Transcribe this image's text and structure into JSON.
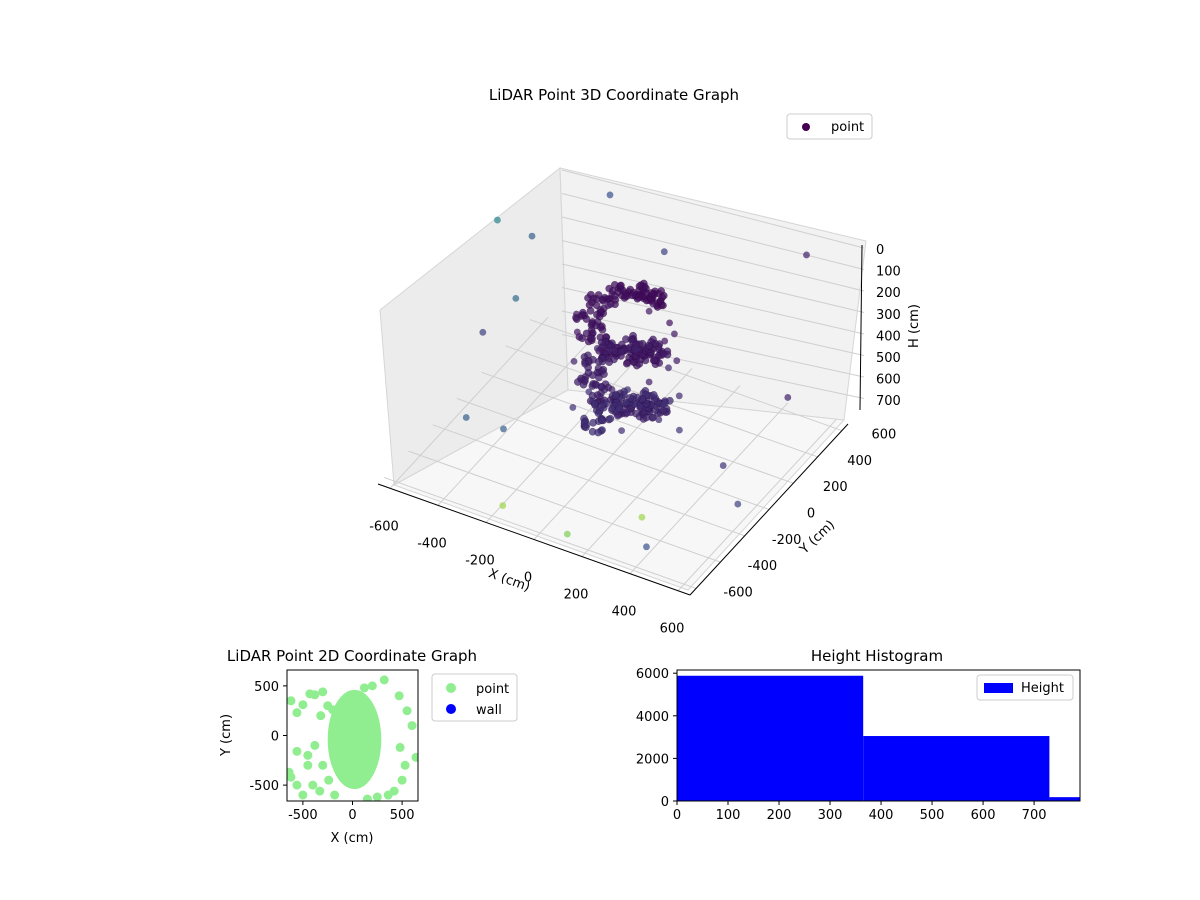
{
  "chart_data": [
    {
      "type": "scatter",
      "projection": "3d",
      "title": "LiDAR Point 3D Coordinate Graph",
      "xlabel": "X (cm)",
      "ylabel": "Y (cm)",
      "zlabel": "H (cm)",
      "xlim": [
        -650,
        650
      ],
      "ylim": [
        -650,
        650
      ],
      "zlim": [
        760,
        0
      ],
      "xticks": [
        "-600",
        "-400",
        "-200",
        "0",
        "200",
        "400",
        "600"
      ],
      "yticks": [
        "-600",
        "-400",
        "-200",
        "0",
        "200",
        "400",
        "600"
      ],
      "zticks": [
        "0",
        "100",
        "200",
        "300",
        "400",
        "500",
        "600",
        "700"
      ],
      "z_inverted": true,
      "colormap": "viridis",
      "grid": true,
      "legend": {
        "position": "top-right",
        "entries": [
          {
            "label": "point",
            "color": "#440154"
          }
        ]
      },
      "series": [
        {
          "name": "point",
          "description_points": "dense ring of points near the center; estimated sample",
          "points": [
            [
              -30,
              40,
              150,
              0.05
            ],
            [
              120,
              80,
              160,
              0.05
            ],
            [
              220,
              20,
              170,
              0.05
            ],
            [
              250,
              -80,
              180,
              0.05
            ],
            [
              180,
              -180,
              190,
              0.05
            ],
            [
              60,
              -220,
              210,
              0.06
            ],
            [
              -80,
              -150,
              220,
              0.06
            ],
            [
              -150,
              -20,
              240,
              0.06
            ],
            [
              -90,
              120,
              260,
              0.07
            ],
            [
              40,
              200,
              280,
              0.07
            ],
            [
              170,
              150,
              300,
              0.07
            ],
            [
              240,
              30,
              320,
              0.08
            ],
            [
              200,
              -120,
              340,
              0.08
            ],
            [
              90,
              -210,
              360,
              0.09
            ],
            [
              -50,
              -190,
              380,
              0.09
            ],
            [
              -140,
              -70,
              400,
              0.1
            ],
            [
              -120,
              80,
              420,
              0.1
            ],
            [
              -10,
              180,
              440,
              0.11
            ],
            [
              130,
              170,
              460,
              0.11
            ],
            [
              230,
              60,
              480,
              0.12
            ],
            [
              220,
              -90,
              500,
              0.12
            ],
            [
              120,
              -200,
              520,
              0.13
            ],
            [
              -20,
              -210,
              540,
              0.13
            ],
            [
              -130,
              -110,
              560,
              0.14
            ],
            [
              -140,
              40,
              580,
              0.14
            ],
            [
              -40,
              160,
              600,
              0.15
            ],
            [
              100,
              180,
              620,
              0.15
            ],
            [
              210,
              90,
              640,
              0.16
            ],
            [
              -560,
              420,
              300,
              0.3
            ],
            [
              -520,
              200,
              420,
              0.35
            ],
            [
              -600,
              80,
              520,
              0.2
            ],
            [
              -480,
              -300,
              620,
              0.3
            ],
            [
              -300,
              560,
              120,
              0.25
            ],
            [
              520,
              560,
              80,
              0.1
            ],
            [
              600,
              -200,
              650,
              0.2
            ],
            [
              400,
              -560,
              700,
              0.25
            ],
            [
              -200,
              -560,
              740,
              0.85
            ],
            [
              100,
              -620,
              720,
              0.8
            ],
            [
              300,
              -400,
              700,
              0.85
            ],
            [
              -420,
              -120,
              740,
              0.3
            ],
            [
              560,
              300,
              500,
              0.1
            ],
            [
              -100,
              600,
              300,
              0.2
            ],
            [
              480,
              -80,
              600,
              0.15
            ],
            [
              -640,
              300,
              200,
              0.45
            ]
          ]
        }
      ]
    },
    {
      "type": "scatter",
      "title": "LiDAR Point 2D Coordinate Graph",
      "xlabel": "X (cm)",
      "ylabel": "Y (cm)",
      "xlim": [
        -660,
        660
      ],
      "ylim": [
        -660,
        660
      ],
      "xticks": [
        -500,
        0,
        500
      ],
      "yticks": [
        -500,
        0,
        500
      ],
      "legend": {
        "position": "right",
        "entries": [
          {
            "label": "point",
            "color": "#90ee90"
          },
          {
            "label": "wall",
            "color": "#0000ff"
          }
        ]
      },
      "series": [
        {
          "name": "point",
          "color": "#90ee90",
          "blob": {
            "cx": 20,
            "cy": -40,
            "rx": 270,
            "ry": 500
          },
          "points": [
            [
              -620,
              350
            ],
            [
              -560,
              230
            ],
            [
              -500,
              310
            ],
            [
              -430,
              420
            ],
            [
              -380,
              410
            ],
            [
              -300,
              440
            ],
            [
              -250,
              300
            ],
            [
              -320,
              200
            ],
            [
              -200,
              260
            ],
            [
              -560,
              -160
            ],
            [
              -450,
              -200
            ],
            [
              -380,
              -100
            ],
            [
              -300,
              -300
            ],
            [
              -620,
              -420
            ],
            [
              -560,
              -500
            ],
            [
              -500,
              -600
            ],
            [
              -450,
              -300
            ],
            [
              -400,
              -500
            ],
            [
              -330,
              -560
            ],
            [
              -240,
              -450
            ],
            [
              -180,
              -600
            ],
            [
              -150,
              -300
            ],
            [
              -130,
              -180
            ],
            [
              -640,
              -370
            ],
            [
              320,
              560
            ],
            [
              470,
              400
            ],
            [
              550,
              250
            ],
            [
              480,
              -120
            ],
            [
              530,
              -300
            ],
            [
              500,
              -450
            ],
            [
              420,
              -560
            ],
            [
              360,
              -600
            ],
            [
              250,
              -620
            ],
            [
              150,
              -640
            ],
            [
              640,
              -220
            ],
            [
              600,
              100
            ],
            [
              200,
              500
            ],
            [
              120,
              480
            ]
          ]
        },
        {
          "name": "wall",
          "color": "#0000ff",
          "points": []
        }
      ]
    },
    {
      "type": "bar",
      "subtype": "histogram",
      "title": "Height Histogram",
      "xlim": [
        0,
        790
      ],
      "ylim": [
        0,
        6150
      ],
      "xticks": [
        0,
        100,
        200,
        300,
        400,
        500,
        600,
        700
      ],
      "yticks": [
        0,
        2000,
        4000,
        6000
      ],
      "color": "#0000ff",
      "legend": {
        "position": "top-right",
        "entries": [
          {
            "label": "Height",
            "color": "#0000ff"
          }
        ]
      },
      "bins": [
        {
          "start": 0,
          "end": 365,
          "value": 5880
        },
        {
          "start": 365,
          "end": 730,
          "value": 3050
        },
        {
          "start": 730,
          "end": 790,
          "value": 180
        }
      ]
    }
  ]
}
